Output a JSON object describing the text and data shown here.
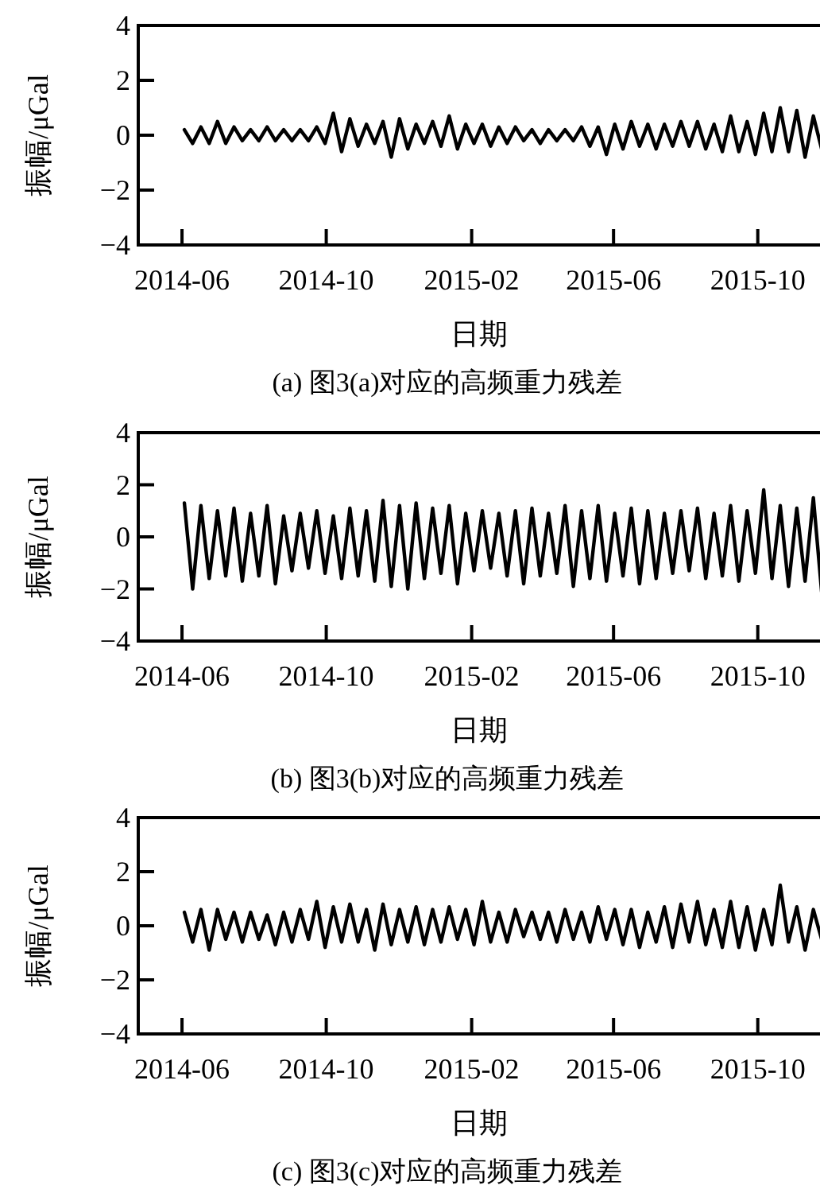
{
  "chart_data": [
    {
      "type": "line",
      "xlabel": "日期",
      "ylabel": "振幅/μGal",
      "annotations": [
        "(a) 图3(a)对应的高频重力残差"
      ],
      "xlim": [
        "2014-04-25",
        "2015-11-28"
      ],
      "ylim": [
        -4,
        4
      ],
      "xticks": [
        "2014-06",
        "2014-10",
        "2015-02",
        "2015-06",
        "2015-10"
      ],
      "yticks": [
        -4,
        -2,
        0,
        2,
        4
      ],
      "x": [
        "2014-06-03",
        "2014-06-10",
        "2014-06-17",
        "2014-06-24",
        "2014-07-01",
        "2014-07-08",
        "2014-07-15",
        "2014-07-22",
        "2014-07-29",
        "2014-08-05",
        "2014-08-12",
        "2014-08-19",
        "2014-08-26",
        "2014-09-02",
        "2014-09-09",
        "2014-09-16",
        "2014-09-23",
        "2014-09-30",
        "2014-10-07",
        "2014-10-14",
        "2014-10-21",
        "2014-10-28",
        "2014-11-04",
        "2014-11-11",
        "2014-11-18",
        "2014-11-25",
        "2014-12-02",
        "2014-12-09",
        "2014-12-16",
        "2014-12-23",
        "2014-12-30",
        "2015-01-06",
        "2015-01-13",
        "2015-01-20",
        "2015-01-27",
        "2015-02-03",
        "2015-02-10",
        "2015-02-17",
        "2015-02-24",
        "2015-03-03",
        "2015-03-10",
        "2015-03-17",
        "2015-03-24",
        "2015-03-31",
        "2015-04-07",
        "2015-04-14",
        "2015-04-21",
        "2015-04-28",
        "2015-05-05",
        "2015-05-12",
        "2015-05-19",
        "2015-05-26",
        "2015-06-02",
        "2015-06-09",
        "2015-06-16",
        "2015-06-23",
        "2015-06-30",
        "2015-07-07",
        "2015-07-14",
        "2015-07-21",
        "2015-07-28",
        "2015-08-04",
        "2015-08-11",
        "2015-08-18",
        "2015-08-25",
        "2015-09-01",
        "2015-09-08",
        "2015-09-15",
        "2015-09-22",
        "2015-09-29",
        "2015-10-06",
        "2015-10-13",
        "2015-10-20",
        "2015-10-27",
        "2015-11-03",
        "2015-11-10",
        "2015-11-17",
        "2015-11-24"
      ],
      "series": [
        {
          "color": "#000000",
          "values": [
            0.2,
            -0.3,
            0.3,
            -0.3,
            0.5,
            -0.3,
            0.3,
            -0.2,
            0.2,
            -0.2,
            0.3,
            -0.2,
            0.2,
            -0.2,
            0.2,
            -0.2,
            0.3,
            -0.3,
            0.8,
            -0.6,
            0.6,
            -0.4,
            0.4,
            -0.3,
            0.5,
            -0.8,
            0.6,
            -0.5,
            0.4,
            -0.3,
            0.5,
            -0.4,
            0.7,
            -0.5,
            0.4,
            -0.3,
            0.4,
            -0.4,
            0.3,
            -0.3,
            0.3,
            -0.2,
            0.2,
            -0.3,
            0.2,
            -0.2,
            0.2,
            -0.2,
            0.3,
            -0.4,
            0.3,
            -0.7,
            0.4,
            -0.5,
            0.5,
            -0.4,
            0.4,
            -0.5,
            0.4,
            -0.4,
            0.5,
            -0.4,
            0.5,
            -0.5,
            0.4,
            -0.6,
            0.7,
            -0.6,
            0.5,
            -0.7,
            0.8,
            -0.6,
            1.0,
            -0.6,
            0.9,
            -0.8,
            0.7,
            -0.5
          ]
        }
      ]
    },
    {
      "type": "line",
      "xlabel": "日期",
      "ylabel": "振幅/μGal",
      "annotations": [
        "(b) 图3(b)对应的高频重力残差"
      ],
      "xlim": [
        "2014-04-25",
        "2015-11-28"
      ],
      "ylim": [
        -4,
        4
      ],
      "xticks": [
        "2014-06",
        "2014-10",
        "2015-02",
        "2015-06",
        "2015-10"
      ],
      "yticks": [
        -4,
        -2,
        0,
        2,
        4
      ],
      "x": [
        "2014-06-03",
        "2014-06-10",
        "2014-06-17",
        "2014-06-24",
        "2014-07-01",
        "2014-07-08",
        "2014-07-15",
        "2014-07-22",
        "2014-07-29",
        "2014-08-05",
        "2014-08-12",
        "2014-08-19",
        "2014-08-26",
        "2014-09-02",
        "2014-09-09",
        "2014-09-16",
        "2014-09-23",
        "2014-09-30",
        "2014-10-07",
        "2014-10-14",
        "2014-10-21",
        "2014-10-28",
        "2014-11-04",
        "2014-11-11",
        "2014-11-18",
        "2014-11-25",
        "2014-12-02",
        "2014-12-09",
        "2014-12-16",
        "2014-12-23",
        "2014-12-30",
        "2015-01-06",
        "2015-01-13",
        "2015-01-20",
        "2015-01-27",
        "2015-02-03",
        "2015-02-10",
        "2015-02-17",
        "2015-02-24",
        "2015-03-03",
        "2015-03-10",
        "2015-03-17",
        "2015-03-24",
        "2015-03-31",
        "2015-04-07",
        "2015-04-14",
        "2015-04-21",
        "2015-04-28",
        "2015-05-05",
        "2015-05-12",
        "2015-05-19",
        "2015-05-26",
        "2015-06-02",
        "2015-06-09",
        "2015-06-16",
        "2015-06-23",
        "2015-06-30",
        "2015-07-07",
        "2015-07-14",
        "2015-07-21",
        "2015-07-28",
        "2015-08-04",
        "2015-08-11",
        "2015-08-18",
        "2015-08-25",
        "2015-09-01",
        "2015-09-08",
        "2015-09-15",
        "2015-09-22",
        "2015-09-29",
        "2015-10-06",
        "2015-10-13",
        "2015-10-20",
        "2015-10-27",
        "2015-11-03",
        "2015-11-10",
        "2015-11-17",
        "2015-11-24"
      ],
      "series": [
        {
          "color": "#000000",
          "values": [
            1.3,
            -2.0,
            1.2,
            -1.6,
            1.0,
            -1.5,
            1.1,
            -1.7,
            0.9,
            -1.5,
            1.2,
            -1.8,
            0.8,
            -1.3,
            0.9,
            -1.2,
            1.0,
            -1.4,
            0.8,
            -1.6,
            1.1,
            -1.5,
            1.0,
            -1.7,
            1.4,
            -1.9,
            1.2,
            -2.0,
            1.3,
            -1.6,
            1.1,
            -1.4,
            1.2,
            -1.8,
            0.9,
            -1.3,
            1.0,
            -1.2,
            0.9,
            -1.5,
            1.0,
            -1.8,
            1.1,
            -1.5,
            0.9,
            -1.4,
            1.2,
            -1.9,
            1.0,
            -1.6,
            1.2,
            -1.7,
            0.9,
            -1.5,
            1.1,
            -1.8,
            1.0,
            -1.6,
            0.9,
            -1.4,
            1.0,
            -1.3,
            1.1,
            -1.6,
            0.9,
            -1.5,
            1.2,
            -1.7,
            1.0,
            -1.4,
            1.8,
            -1.6,
            1.2,
            -1.9,
            1.1,
            -1.7,
            1.5,
            -2.1
          ]
        }
      ]
    },
    {
      "type": "line",
      "xlabel": "日期",
      "ylabel": "振幅/μGal",
      "annotations": [
        "(c) 图3(c)对应的高频重力残差"
      ],
      "xlim": [
        "2014-04-25",
        "2015-11-28"
      ],
      "ylim": [
        -4,
        4
      ],
      "xticks": [
        "2014-06",
        "2014-10",
        "2015-02",
        "2015-06",
        "2015-10"
      ],
      "yticks": [
        -4,
        -2,
        0,
        2,
        4
      ],
      "x": [
        "2014-06-03",
        "2014-06-10",
        "2014-06-17",
        "2014-06-24",
        "2014-07-01",
        "2014-07-08",
        "2014-07-15",
        "2014-07-22",
        "2014-07-29",
        "2014-08-05",
        "2014-08-12",
        "2014-08-19",
        "2014-08-26",
        "2014-09-02",
        "2014-09-09",
        "2014-09-16",
        "2014-09-23",
        "2014-09-30",
        "2014-10-07",
        "2014-10-14",
        "2014-10-21",
        "2014-10-28",
        "2014-11-04",
        "2014-11-11",
        "2014-11-18",
        "2014-11-25",
        "2014-12-02",
        "2014-12-09",
        "2014-12-16",
        "2014-12-23",
        "2014-12-30",
        "2015-01-06",
        "2015-01-13",
        "2015-01-20",
        "2015-01-27",
        "2015-02-03",
        "2015-02-10",
        "2015-02-17",
        "2015-02-24",
        "2015-03-03",
        "2015-03-10",
        "2015-03-17",
        "2015-03-24",
        "2015-03-31",
        "2015-04-07",
        "2015-04-14",
        "2015-04-21",
        "2015-04-28",
        "2015-05-05",
        "2015-05-12",
        "2015-05-19",
        "2015-05-26",
        "2015-06-02",
        "2015-06-09",
        "2015-06-16",
        "2015-06-23",
        "2015-06-30",
        "2015-07-07",
        "2015-07-14",
        "2015-07-21",
        "2015-07-28",
        "2015-08-04",
        "2015-08-11",
        "2015-08-18",
        "2015-08-25",
        "2015-09-01",
        "2015-09-08",
        "2015-09-15",
        "2015-09-22",
        "2015-09-29",
        "2015-10-06",
        "2015-10-13",
        "2015-10-20",
        "2015-10-27",
        "2015-11-03",
        "2015-11-10",
        "2015-11-17",
        "2015-11-24"
      ],
      "series": [
        {
          "color": "#000000",
          "values": [
            0.5,
            -0.6,
            0.6,
            -0.9,
            0.6,
            -0.5,
            0.5,
            -0.6,
            0.5,
            -0.5,
            0.4,
            -0.7,
            0.5,
            -0.6,
            0.6,
            -0.5,
            0.9,
            -0.8,
            0.7,
            -0.6,
            0.8,
            -0.6,
            0.6,
            -0.9,
            0.8,
            -0.7,
            0.6,
            -0.6,
            0.7,
            -0.7,
            0.6,
            -0.6,
            0.7,
            -0.5,
            0.6,
            -0.7,
            0.9,
            -0.6,
            0.5,
            -0.6,
            0.6,
            -0.4,
            0.5,
            -0.5,
            0.5,
            -0.6,
            0.6,
            -0.5,
            0.5,
            -0.6,
            0.7,
            -0.5,
            0.6,
            -0.7,
            0.6,
            -0.8,
            0.5,
            -0.6,
            0.7,
            -0.8,
            0.8,
            -0.6,
            0.9,
            -0.7,
            0.6,
            -0.8,
            0.9,
            -0.8,
            0.7,
            -0.9,
            0.6,
            -0.7,
            1.5,
            -0.6,
            0.7,
            -0.9,
            0.6,
            -0.5
          ]
        }
      ]
    }
  ]
}
